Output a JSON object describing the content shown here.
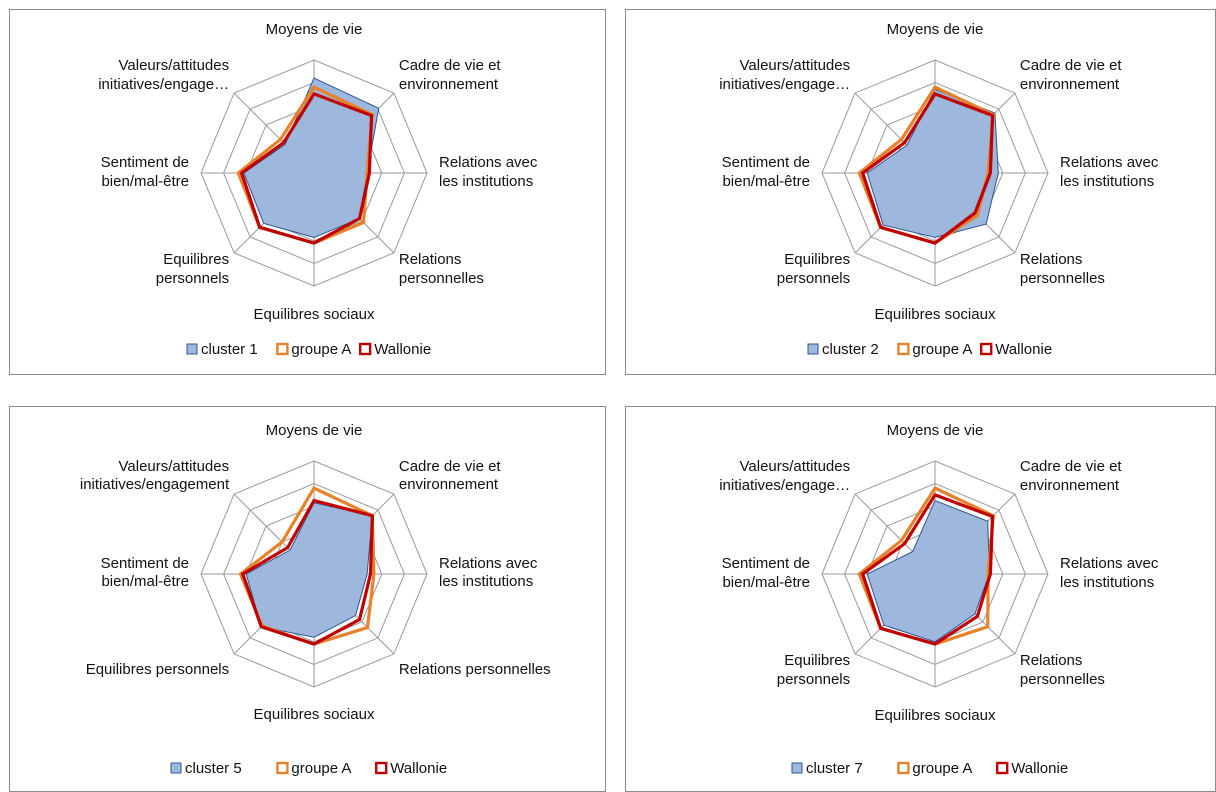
{
  "colors": {
    "cluster_fill": "#9db8dc",
    "cluster_stroke": "#2f5597",
    "groupeA": "#e8822a",
    "wallonie": "#c00000"
  },
  "chart_data": [
    {
      "type": "radar",
      "axes": [
        "Moyens de vie",
        "Cadre de vie et environnement",
        "Relations avec les institutions",
        "Relations personnelles",
        "Equilibres sociaux",
        "Equilibres personnels",
        "Sentiment de bien/mal-être",
        "Valeurs/attitudes initiatives/engagement"
      ],
      "axis_labels": [
        [
          "Moyens de vie"
        ],
        [
          "Cadre de vie et",
          "environnement"
        ],
        [
          "Relations avec",
          "les institutions"
        ],
        [
          "Relations",
          "personnelles"
        ],
        [
          "Equilibres sociaux"
        ],
        [
          "Equilibres",
          "personnels"
        ],
        [
          "Sentiment de",
          "bien/mal-être"
        ],
        [
          "Valeurs/attitudes",
          "initiatives/engage…"
        ]
      ],
      "rmax": 1,
      "rings": 5,
      "legend_position": "bottom",
      "series": [
        {
          "name": "cluster 1",
          "values": [
            0.84,
            0.81,
            0.47,
            0.57,
            0.57,
            0.63,
            0.62,
            0.36
          ]
        },
        {
          "name": "groupe A",
          "values": [
            0.76,
            0.73,
            0.47,
            0.62,
            0.62,
            0.68,
            0.67,
            0.42
          ]
        },
        {
          "name": "Wallonie",
          "values": [
            0.7,
            0.72,
            0.49,
            0.57,
            0.62,
            0.68,
            0.64,
            0.38
          ]
        }
      ]
    },
    {
      "type": "radar",
      "axes": [
        "Moyens de vie",
        "Cadre de vie et environnement",
        "Relations avec les institutions",
        "Relations personnelles",
        "Equilibres sociaux",
        "Equilibres personnels",
        "Sentiment de bien/mal-être",
        "Valeurs/attitudes initiatives/engagement"
      ],
      "axis_labels": [
        [
          "Moyens de vie"
        ],
        [
          "Cadre de vie et",
          "environnement"
        ],
        [
          "Relations avec",
          "les institutions"
        ],
        [
          "Relations",
          "personnelles"
        ],
        [
          "Equilibres sociaux"
        ],
        [
          "Equilibres",
          "personnels"
        ],
        [
          "Sentiment de",
          "bien/mal-être"
        ],
        [
          "Valeurs/attitudes",
          "initiatives/engage…"
        ]
      ],
      "rmax": 1,
      "rings": 5,
      "legend_position": "bottom",
      "series": [
        {
          "name": "cluster 2",
          "values": [
            0.74,
            0.75,
            0.56,
            0.64,
            0.57,
            0.65,
            0.6,
            0.35
          ]
        },
        {
          "name": "groupe A",
          "values": [
            0.76,
            0.73,
            0.47,
            0.53,
            0.62,
            0.68,
            0.67,
            0.42
          ]
        },
        {
          "name": "Wallonie",
          "values": [
            0.7,
            0.72,
            0.49,
            0.5,
            0.62,
            0.68,
            0.64,
            0.38
          ]
        }
      ]
    },
    {
      "type": "radar",
      "axes": [
        "Moyens de vie",
        "Cadre de vie et environnement",
        "Relations avec les institutions",
        "Relations personnelles",
        "Equilibres sociaux",
        "Equilibres personnels",
        "Sentiment de bien/mal-être",
        "Valeurs/attitudes initiatives/engagement"
      ],
      "axis_labels": [
        [
          "Moyens de vie"
        ],
        [
          "Cadre de vie et",
          "environnement"
        ],
        [
          "Relations avec",
          "les institutions"
        ],
        [
          "Relations personnelles"
        ],
        [
          "Equilibres sociaux"
        ],
        [
          "Equilibres personnels"
        ],
        [
          "Sentiment de",
          "bien/mal-être"
        ],
        [
          "Valeurs/attitudes",
          "initiatives/engagement"
        ]
      ],
      "rmax": 1,
      "rings": 5,
      "legend_position": "bottom",
      "series": [
        {
          "name": "cluster 5",
          "values": [
            0.63,
            0.73,
            0.47,
            0.52,
            0.56,
            0.66,
            0.6,
            0.3
          ]
        },
        {
          "name": "groupe A",
          "values": [
            0.76,
            0.73,
            0.53,
            0.67,
            0.62,
            0.65,
            0.65,
            0.4
          ]
        },
        {
          "name": "Wallonie",
          "values": [
            0.65,
            0.73,
            0.5,
            0.57,
            0.62,
            0.66,
            0.63,
            0.33
          ]
        }
      ]
    },
    {
      "type": "radar",
      "axes": [
        "Moyens de vie",
        "Cadre de vie et environnement",
        "Relations avec les institutions",
        "Relations personnelles",
        "Equilibres sociaux",
        "Equilibres personnels",
        "Sentiment de bien/mal-être",
        "Valeurs/attitudes initiatives/engagement"
      ],
      "axis_labels": [
        [
          "Moyens de vie"
        ],
        [
          "Cadre de vie et",
          "environnement"
        ],
        [
          "Relations avec",
          "les institutions"
        ],
        [
          "Relations",
          "personnelles"
        ],
        [
          "Equilibres sociaux"
        ],
        [
          "Equilibres",
          "personnels"
        ],
        [
          "Sentiment de",
          "bien/mal-être"
        ],
        [
          "Valeurs/attitudes",
          "initiatives/engage…"
        ]
      ],
      "rmax": 1,
      "rings": 5,
      "legend_position": "bottom",
      "series": [
        {
          "name": "cluster 7",
          "values": [
            0.65,
            0.66,
            0.48,
            0.5,
            0.6,
            0.64,
            0.6,
            0.28
          ]
        },
        {
          "name": "groupe A",
          "values": [
            0.76,
            0.73,
            0.47,
            0.66,
            0.62,
            0.68,
            0.67,
            0.42
          ]
        },
        {
          "name": "Wallonie",
          "values": [
            0.7,
            0.72,
            0.49,
            0.53,
            0.62,
            0.68,
            0.64,
            0.38
          ]
        }
      ]
    }
  ]
}
